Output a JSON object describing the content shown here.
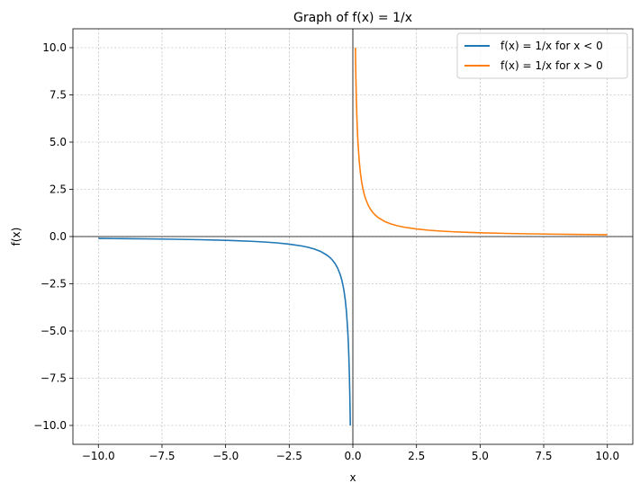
{
  "chart_data": {
    "type": "line",
    "title": "Graph of f(x) = 1/x",
    "xlabel": "x",
    "ylabel": "f(x)",
    "xlim": [
      -11,
      11
    ],
    "ylim": [
      -11,
      11
    ],
    "xticks": [
      -10,
      -7.5,
      -5,
      -2.5,
      0,
      2.5,
      5,
      7.5,
      10
    ],
    "xtick_labels": [
      "−10.0",
      "−7.5",
      "−5.0",
      "−2.5",
      "0.0",
      "2.5",
      "5.0",
      "7.5",
      "10.0"
    ],
    "yticks": [
      -10,
      -7.5,
      -5,
      -2.5,
      0,
      2.5,
      5,
      7.5,
      10
    ],
    "ytick_labels": [
      "−10.0",
      "−7.5",
      "−5.0",
      "−2.5",
      "0.0",
      "2.5",
      "5.0",
      "7.5",
      "10.0"
    ],
    "grid": true,
    "legend_position": "top-right",
    "reference_lines": {
      "x": 0,
      "y": 0
    },
    "series": [
      {
        "name": "f(x) = 1/x for x < 0",
        "color": "#1f77b4",
        "x": [
          -10,
          -9,
          -8,
          -7,
          -6,
          -5,
          -4.5,
          -4,
          -3.5,
          -3,
          -2.5,
          -2,
          -1.75,
          -1.5,
          -1.25,
          -1,
          -0.9,
          -0.8,
          -0.7,
          -0.6,
          -0.5,
          -0.45,
          -0.4,
          -0.35,
          -0.3,
          -0.25,
          -0.2,
          -0.18,
          -0.16,
          -0.14,
          -0.12,
          -0.11,
          -0.1
        ],
        "y": [
          -0.1,
          -0.111,
          -0.125,
          -0.143,
          -0.167,
          -0.2,
          -0.222,
          -0.25,
          -0.286,
          -0.333,
          -0.4,
          -0.5,
          -0.571,
          -0.667,
          -0.8,
          -1,
          -1.111,
          -1.25,
          -1.429,
          -1.667,
          -2,
          -2.222,
          -2.5,
          -2.857,
          -3.333,
          -4,
          -5,
          -5.556,
          -6.25,
          -7.143,
          -8.333,
          -9.091,
          -10
        ]
      },
      {
        "name": "f(x) = 1/x for x > 0",
        "color": "#ff7f0e",
        "x": [
          0.1,
          0.11,
          0.12,
          0.14,
          0.16,
          0.18,
          0.2,
          0.25,
          0.3,
          0.35,
          0.4,
          0.45,
          0.5,
          0.6,
          0.7,
          0.8,
          0.9,
          1,
          1.25,
          1.5,
          1.75,
          2,
          2.5,
          3,
          3.5,
          4,
          4.5,
          5,
          6,
          7,
          8,
          9,
          10
        ],
        "y": [
          10,
          9.091,
          8.333,
          7.143,
          6.25,
          5.556,
          5,
          4,
          3.333,
          2.857,
          2.5,
          2.222,
          2,
          1.667,
          1.429,
          1.25,
          1.111,
          1,
          0.8,
          0.667,
          0.571,
          0.5,
          0.4,
          0.333,
          0.286,
          0.25,
          0.222,
          0.2,
          0.167,
          0.143,
          0.125,
          0.111,
          0.1
        ]
      }
    ]
  }
}
